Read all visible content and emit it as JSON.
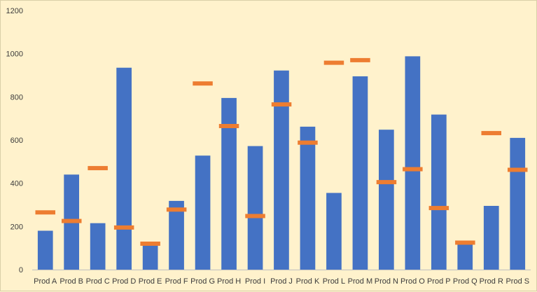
{
  "chart_data": {
    "type": "bar",
    "categories": [
      "Prod A",
      "Prod B",
      "Prod C",
      "Prod D",
      "Prod E",
      "Prod F",
      "Prod G",
      "Prod H",
      "Prod I",
      "Prod J",
      "Prod K",
      "Prod L",
      "Prod M",
      "Prod N",
      "Prod O",
      "Prod P",
      "Prod Q",
      "Prod R",
      "Prod S"
    ],
    "series": [
      {
        "type": "bar",
        "color": "#4472c4",
        "values": [
          180,
          440,
          215,
          935,
          125,
          318,
          528,
          795,
          572,
          922,
          662,
          355,
          895,
          648,
          988,
          718,
          125,
          295,
          610
        ]
      },
      {
        "type": "marker",
        "color": "#ed7d31",
        "values": [
          265,
          225,
          470,
          195,
          120,
          278,
          862,
          665,
          248,
          765,
          588,
          958,
          970,
          405,
          465,
          285,
          125,
          632,
          462
        ]
      }
    ],
    "ylim": [
      0,
      1200
    ],
    "yticks": [
      0,
      200,
      400,
      600,
      800,
      1000,
      1200
    ],
    "grid": false,
    "legend": "none"
  }
}
